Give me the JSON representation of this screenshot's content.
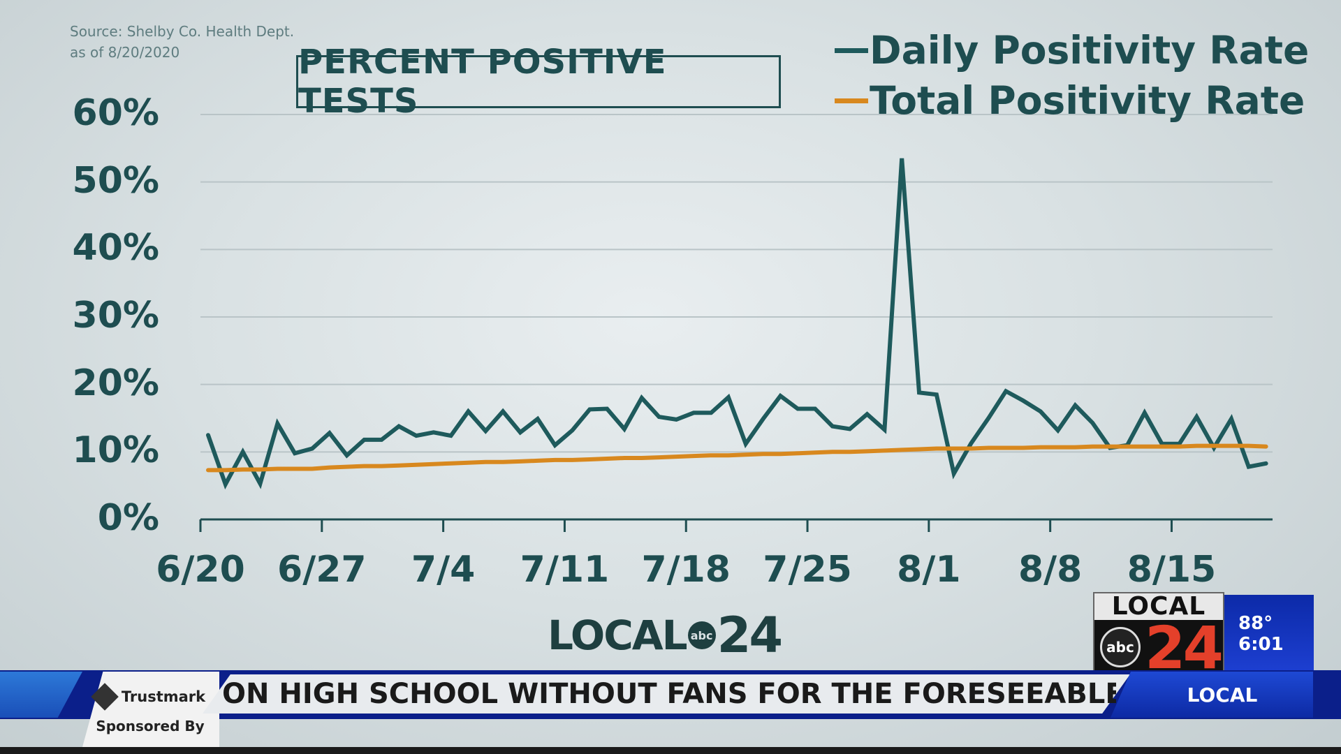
{
  "source_line1": "Source:  Shelby Co. Health Dept.",
  "source_line2": "as of 8/20/2020",
  "chart_data": {
    "type": "line",
    "title": "PERCENT POSITIVE TESTS",
    "x_ticks": [
      "6/20",
      "6/27",
      "7/4",
      "7/11",
      "7/18",
      "7/25",
      "8/1",
      "8/8",
      "8/15"
    ],
    "y_ticks": [
      "0%",
      "10%",
      "20%",
      "30%",
      "40%",
      "50%",
      "60%"
    ],
    "ylim": [
      0,
      60
    ],
    "grid": true,
    "legend_position": "top-right",
    "x_dates": [
      "6/20",
      "6/21",
      "6/22",
      "6/23",
      "6/24",
      "6/25",
      "6/26",
      "6/27",
      "6/28",
      "6/29",
      "6/30",
      "7/1",
      "7/2",
      "7/3",
      "7/4",
      "7/5",
      "7/6",
      "7/7",
      "7/8",
      "7/9",
      "7/10",
      "7/11",
      "7/12",
      "7/13",
      "7/14",
      "7/15",
      "7/16",
      "7/17",
      "7/18",
      "7/19",
      "7/20",
      "7/21",
      "7/22",
      "7/23",
      "7/24",
      "7/25",
      "7/26",
      "7/27",
      "7/28",
      "7/29",
      "7/30",
      "7/31",
      "8/1",
      "8/2",
      "8/3",
      "8/4",
      "8/5",
      "8/6",
      "8/7",
      "8/8",
      "8/9",
      "8/10",
      "8/11",
      "8/12",
      "8/13",
      "8/14",
      "8/15",
      "8/16",
      "8/17",
      "8/18",
      "8/19",
      "8/20"
    ],
    "series": [
      {
        "name": "Daily Positivity Rate",
        "color": "#1e5a5c",
        "values": [
          12.5,
          5.2,
          10,
          5.3,
          14.2,
          9.8,
          10.5,
          12.8,
          9.5,
          11.8,
          11.8,
          13.8,
          12.4,
          12.9,
          12.4,
          16,
          13.1,
          16,
          12.9,
          14.9,
          11,
          13.2,
          16.3,
          16.4,
          13.4,
          18,
          15.2,
          14.8,
          15.8,
          15.8,
          18.1,
          11.2,
          14.9,
          18.3,
          16.4,
          16.4,
          13.8,
          13.4,
          15.6,
          13.3,
          53.5,
          18.8,
          18.5,
          6.8,
          11.3,
          15,
          19,
          17.6,
          16,
          13.2,
          16.9,
          14.3,
          10.6,
          11,
          15.8,
          11.2,
          11.2,
          15.2,
          10.6,
          14.9,
          7.8,
          8.3
        ]
      },
      {
        "name": "Total Positivity Rate",
        "color": "#d8881e",
        "values": [
          7.3,
          7.3,
          7.4,
          7.4,
          7.5,
          7.5,
          7.5,
          7.7,
          7.8,
          7.9,
          7.9,
          8.0,
          8.1,
          8.2,
          8.3,
          8.4,
          8.5,
          8.5,
          8.6,
          8.7,
          8.8,
          8.8,
          8.9,
          9.0,
          9.1,
          9.1,
          9.2,
          9.3,
          9.4,
          9.5,
          9.5,
          9.6,
          9.7,
          9.7,
          9.8,
          9.9,
          10.0,
          10.0,
          10.1,
          10.2,
          10.3,
          10.4,
          10.5,
          10.5,
          10.5,
          10.6,
          10.6,
          10.6,
          10.7,
          10.7,
          10.7,
          10.8,
          10.8,
          10.8,
          10.8,
          10.8,
          10.8,
          10.9,
          10.9,
          10.9,
          10.9,
          10.8
        ]
      }
    ]
  },
  "logo_center": {
    "word": "LOCAL",
    "abc": "abc",
    "num": "24"
  },
  "bug": {
    "local": "LOCAL",
    "abc": "abc",
    "num": "24"
  },
  "weather": {
    "temp": "88°",
    "time": "6:01"
  },
  "ticker": {
    "sponsor": "Trustmark",
    "sponsored_by": "Sponsored By",
    "headline": "ON HIGH SCHOOL WITHOUT FANS FOR THE FORESEEABLE FUTURE",
    "label": "LOCAL"
  },
  "colors": {
    "accent_teal": "#1e5a5c",
    "accent_orange": "#d8881e",
    "ticker_blue": "#0b1f8a"
  }
}
